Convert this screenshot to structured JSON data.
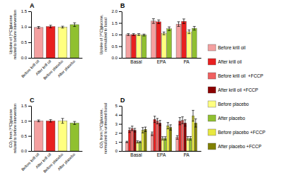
{
  "chart_data": [
    {
      "type": "bar",
      "title": "A",
      "ylabel": "Uptake of [¹⁴C]glucose\nrelated to before intervention",
      "categories": [
        "Before krill oil",
        "After krill oil",
        "Before placebo",
        "After placebo"
      ],
      "values": [
        0.98,
        1.01,
        0.99,
        1.07
      ],
      "errors": [
        0.03,
        0.04,
        0.03,
        0.06
      ],
      "colors": [
        "#F4A0A0",
        "#E82020",
        "#FFFF80",
        "#90C030"
      ],
      "ylim": [
        0,
        1.5
      ],
      "yticks": [
        {
          "value": 0,
          "label": "0.0"
        },
        0.5,
        {
          "value": 1,
          "label": "1.0"
        },
        1.5
      ]
    },
    {
      "type": "bar",
      "title": "B",
      "ylabel": "Uptake of [¹⁴C]glucose,\nnormalized to basal",
      "categories": [
        "Basal",
        "EPA",
        "PA"
      ],
      "series": [
        {
          "color": "#F4A0A0",
          "values": [
            1.0,
            1.58,
            1.45
          ],
          "errors": [
            0.04,
            0.1,
            0.1
          ]
        },
        {
          "color": "#E82020",
          "values": [
            1.0,
            1.55,
            1.57
          ],
          "errors": [
            0.04,
            0.08,
            0.1
          ]
        },
        {
          "color": "#FFFF80",
          "values": [
            1.0,
            1.05,
            1.12
          ],
          "errors": [
            0.04,
            0.06,
            0.08
          ]
        },
        {
          "color": "#90C030",
          "values": [
            0.98,
            1.25,
            1.27
          ],
          "errors": [
            0.04,
            0.08,
            0.08
          ]
        }
      ],
      "ylim": [
        0,
        2.0
      ],
      "yticks": [
        {
          "value": 0,
          "label": "0.0"
        },
        0.5,
        {
          "value": 1,
          "label": "1.0"
        },
        1.5,
        {
          "value": 2,
          "label": "2.0"
        }
      ]
    },
    {
      "type": "bar",
      "title": "C",
      "ylabel": "CO₂ from [¹⁴C]glucose\nrelated to before intervention",
      "categories": [
        "Before krill oil",
        "After krill oil",
        "Before placebo",
        "After placebo"
      ],
      "values": [
        1.0,
        1.0,
        1.0,
        0.93
      ],
      "errors": [
        0.03,
        0.04,
        0.08,
        0.05
      ],
      "colors": [
        "#F4A0A0",
        "#E82020",
        "#FFFF80",
        "#90C030"
      ],
      "ylim": [
        0,
        1.5
      ],
      "yticks": [
        {
          "value": 0,
          "label": "0.0"
        },
        0.5,
        {
          "value": 1,
          "label": "1.0"
        },
        1.5
      ]
    },
    {
      "type": "bar",
      "title": "D",
      "ylabel": "CO₂ from [¹⁴C]glucose,\nnormalized to untreated basal",
      "categories": [
        "Basal",
        "EPA",
        "PA"
      ],
      "series": [
        {
          "name": "Before krill oil",
          "color": "#F4A0A0",
          "values": [
            1.0,
            1.9,
            1.5
          ],
          "errors": [
            0.08,
            0.2,
            0.2
          ]
        },
        {
          "name": "After krill oil",
          "color": "#E82020",
          "values": [
            2.3,
            3.5,
            3.3
          ],
          "errors": [
            0.25,
            0.35,
            0.4
          ]
        },
        {
          "name": "Before krill oil  +FCCP",
          "color": "#F06060",
          "values": [
            2.5,
            3.3,
            3.4
          ],
          "errors": [
            0.25,
            0.3,
            0.38
          ]
        },
        {
          "name": "After krill oil +FCCP",
          "color": "#8B0000",
          "values": [
            2.3,
            3.1,
            3.1
          ],
          "errors": [
            0.2,
            0.28,
            0.35
          ]
        },
        {
          "name": "Before placebo",
          "color": "#FFFF80",
          "values": [
            1.0,
            1.4,
            1.4
          ],
          "errors": [
            0.12,
            0.18,
            0.2
          ]
        },
        {
          "name": "After placebo",
          "color": "#90C030",
          "values": [
            1.0,
            1.4,
            1.4
          ],
          "errors": [
            0.08,
            0.18,
            0.2
          ]
        },
        {
          "name": "Before placebo +FCCP",
          "color": "#E8E840",
          "values": [
            2.3,
            2.8,
            3.9
          ],
          "errors": [
            0.3,
            0.35,
            0.6
          ]
        },
        {
          "name": "After placebo +FCCP",
          "color": "#808000",
          "values": [
            2.4,
            2.6,
            3.1
          ],
          "errors": [
            0.25,
            0.3,
            0.45
          ]
        }
      ],
      "legend": "right",
      "ylim": [
        0,
        5
      ],
      "yticks": [
        0,
        1,
        2,
        3,
        4,
        5
      ]
    }
  ]
}
